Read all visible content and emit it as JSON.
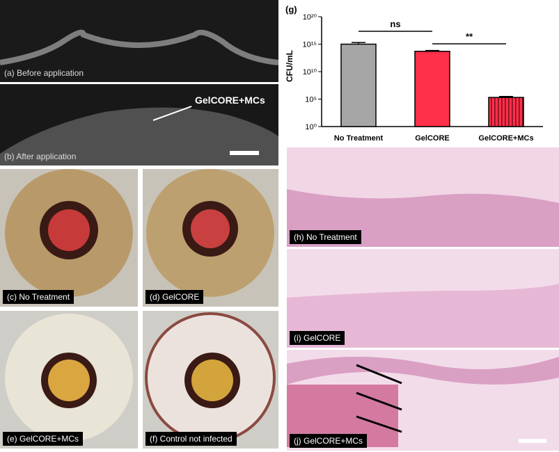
{
  "panels": [
    {
      "label": "(a) Before application"
    },
    {
      "label": "(b) After application"
    },
    {
      "label": "(c) No Treatment"
    },
    {
      "label": "(d) GelCORE"
    },
    {
      "label": "(e) GelCORE+MCs"
    },
    {
      "label": "(f) Control not infected"
    },
    {
      "label": "(h) No Treatment"
    },
    {
      "label": "(i) GelCORE"
    },
    {
      "label": "(j) GelCORE+MCs"
    }
  ],
  "arrow_label": "GelCORE+MCs",
  "chart_data": {
    "type": "bar",
    "title": "(g)",
    "y_label": "CFU/mL",
    "log_scale": true,
    "categories": [
      "No Treatment",
      "GelCORE",
      "GelCORE+MCs"
    ],
    "values": [
      1000000000000000.0,
      50000000000000.0,
      200000.0
    ],
    "errors": [
      1000000000000000.0,
      20000000000000.0,
      100000.0
    ],
    "colors": [
      "#a6a6a6",
      "#ff3049",
      "#ff3049"
    ],
    "ylim": [
      1,
      1e+20
    ],
    "yticks": [
      {
        "value": 1,
        "label": "10⁰"
      },
      {
        "value": 100000.0,
        "label": "10⁵"
      },
      {
        "value": 10000000000.0,
        "label": "10¹⁰"
      },
      {
        "value": 1000000000000000.0,
        "label": "10¹⁵"
      },
      {
        "value": 1e+20,
        "label": "10²⁰"
      }
    ],
    "annotations": [
      "ns",
      "**"
    ]
  }
}
